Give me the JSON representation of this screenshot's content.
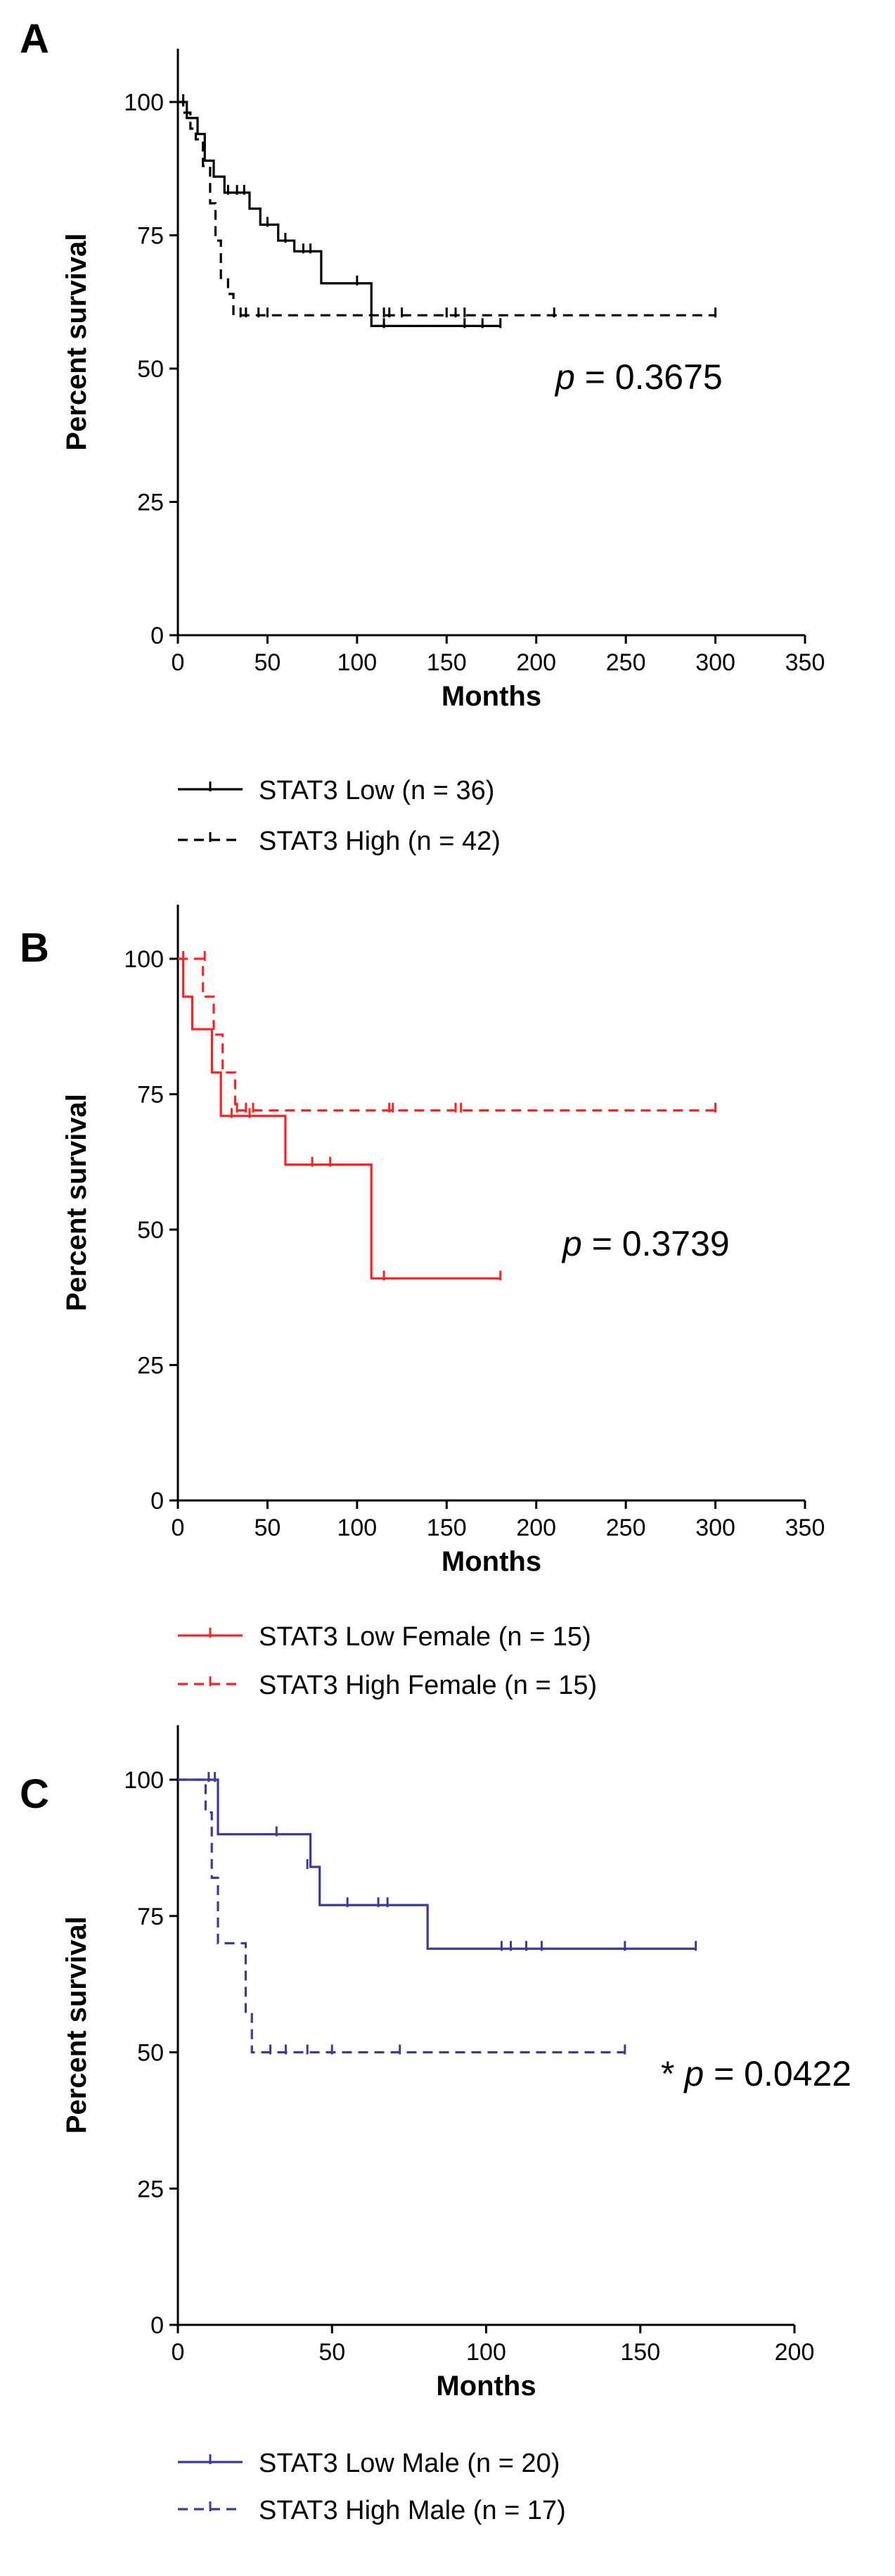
{
  "chart_data": [
    {
      "panel": "A",
      "type": "line",
      "ylabel": "Percent survival",
      "xlabel": "Months",
      "xlim": [
        0,
        350
      ],
      "ylim": [
        0,
        100
      ],
      "xticks": [
        0,
        50,
        100,
        150,
        200,
        250,
        300,
        350
      ],
      "yticks": [
        0,
        25,
        50,
        75,
        100
      ],
      "annotation": {
        "prefix": "",
        "italic": "p",
        "text": " = 0.3675"
      },
      "series": [
        {
          "name": "STAT3 Low (n = 36)",
          "color": "#000000",
          "dash": false,
          "steps": [
            [
              0,
              100
            ],
            [
              5,
              97
            ],
            [
              11,
              94
            ],
            [
              15,
              89
            ],
            [
              20,
              86
            ],
            [
              26,
              83
            ],
            [
              40,
              80
            ],
            [
              46,
              77
            ],
            [
              56,
              74
            ],
            [
              65,
              72
            ],
            [
              80,
              66
            ],
            [
              108,
              58
            ],
            [
              180,
              58
            ]
          ],
          "censors": [
            [
              3,
              100
            ],
            [
              28,
              83
            ],
            [
              33,
              83
            ],
            [
              37,
              83
            ],
            [
              50,
              77
            ],
            [
              60,
              74
            ],
            [
              70,
              72
            ],
            [
              74,
              72
            ],
            [
              100,
              66
            ],
            [
              115,
              58
            ],
            [
              160,
              58
            ],
            [
              170,
              58
            ],
            [
              180,
              58
            ]
          ]
        },
        {
          "name": "STAT3 High (n = 42)",
          "color": "#000000",
          "dash": true,
          "steps": [
            [
              0,
              100
            ],
            [
              3,
              98
            ],
            [
              7,
              95
            ],
            [
              10,
              93
            ],
            [
              14,
              88
            ],
            [
              18,
              81
            ],
            [
              21,
              74
            ],
            [
              24,
              67
            ],
            [
              28,
              64
            ],
            [
              31,
              60
            ],
            [
              300,
              60
            ]
          ],
          "censors": [
            [
              35,
              60
            ],
            [
              38,
              60
            ],
            [
              45,
              60
            ],
            [
              50,
              60
            ],
            [
              115,
              60
            ],
            [
              118,
              60
            ],
            [
              125,
              60
            ],
            [
              150,
              60
            ],
            [
              155,
              60
            ],
            [
              160,
              60
            ],
            [
              210,
              60
            ],
            [
              300,
              60
            ]
          ]
        }
      ]
    },
    {
      "panel": "B",
      "type": "line",
      "ylabel": "Percent survival",
      "xlabel": "Months",
      "xlim": [
        0,
        350
      ],
      "ylim": [
        0,
        100
      ],
      "xticks": [
        0,
        50,
        100,
        150,
        200,
        250,
        300,
        350
      ],
      "yticks": [
        0,
        25,
        50,
        75,
        100
      ],
      "annotation": {
        "prefix": "",
        "italic": "p",
        "text": " = 0.3739"
      },
      "series": [
        {
          "name": "STAT3 Low Female (n = 15)",
          "color": "#ff2020",
          "dash": false,
          "steps": [
            [
              0,
              100
            ],
            [
              3,
              93
            ],
            [
              8,
              87
            ],
            [
              19,
              79
            ],
            [
              24,
              71
            ],
            [
              60,
              62
            ],
            [
              108,
              41
            ],
            [
              180,
              41
            ]
          ],
          "censors": [
            [
              3,
              100
            ],
            [
              30,
              71
            ],
            [
              40,
              71
            ],
            [
              75,
              62
            ],
            [
              85,
              62
            ],
            [
              115,
              41
            ],
            [
              180,
              41
            ]
          ]
        },
        {
          "name": "STAT3 High Female (n = 15)",
          "color": "#ff2020",
          "dash": true,
          "steps": [
            [
              0,
              100
            ],
            [
              14,
              93
            ],
            [
              20,
              86
            ],
            [
              25,
              79
            ],
            [
              32,
              72
            ],
            [
              300,
              72
            ]
          ],
          "censors": [
            [
              15,
              100
            ],
            [
              33,
              72
            ],
            [
              38,
              72
            ],
            [
              42,
              72
            ],
            [
              118,
              72
            ],
            [
              120,
              72
            ],
            [
              155,
              72
            ],
            [
              158,
              72
            ],
            [
              300,
              72
            ]
          ]
        }
      ]
    },
    {
      "panel": "C",
      "type": "line",
      "ylabel": "Percent survival",
      "xlabel": "Months",
      "xlim": [
        0,
        200
      ],
      "ylim": [
        0,
        100
      ],
      "xticks": [
        0,
        50,
        100,
        150,
        200
      ],
      "yticks": [
        0,
        25,
        50,
        75,
        100
      ],
      "annotation": {
        "prefix": "* ",
        "italic": "p",
        "text": " = 0.0422"
      },
      "series": [
        {
          "name": "STAT3 Low Male (n = 20)",
          "color": "#3b3b99",
          "dash": false,
          "steps": [
            [
              0,
              100
            ],
            [
              13,
              90
            ],
            [
              43,
              84
            ],
            [
              46,
              77
            ],
            [
              81,
              69
            ],
            [
              168,
              69
            ]
          ],
          "censors": [
            [
              12,
              100
            ],
            [
              32,
              90
            ],
            [
              42,
              84
            ],
            [
              55,
              77
            ],
            [
              65,
              77
            ],
            [
              68,
              77
            ],
            [
              105,
              69
            ],
            [
              108,
              69
            ],
            [
              113,
              69
            ],
            [
              118,
              69
            ],
            [
              145,
              69
            ],
            [
              168,
              69
            ]
          ]
        },
        {
          "name": "STAT3 High Male (n = 17)",
          "color": "#3b3b99",
          "dash": true,
          "steps": [
            [
              0,
              100
            ],
            [
              9,
              94
            ],
            [
              11,
              82
            ],
            [
              13,
              70
            ],
            [
              22,
              57
            ],
            [
              24,
              50
            ],
            [
              145,
              50
            ]
          ],
          "censors": [
            [
              10,
              100
            ],
            [
              30,
              50
            ],
            [
              35,
              50
            ],
            [
              42,
              50
            ],
            [
              50,
              50
            ],
            [
              72,
              50
            ],
            [
              145,
              50
            ]
          ]
        }
      ]
    }
  ]
}
